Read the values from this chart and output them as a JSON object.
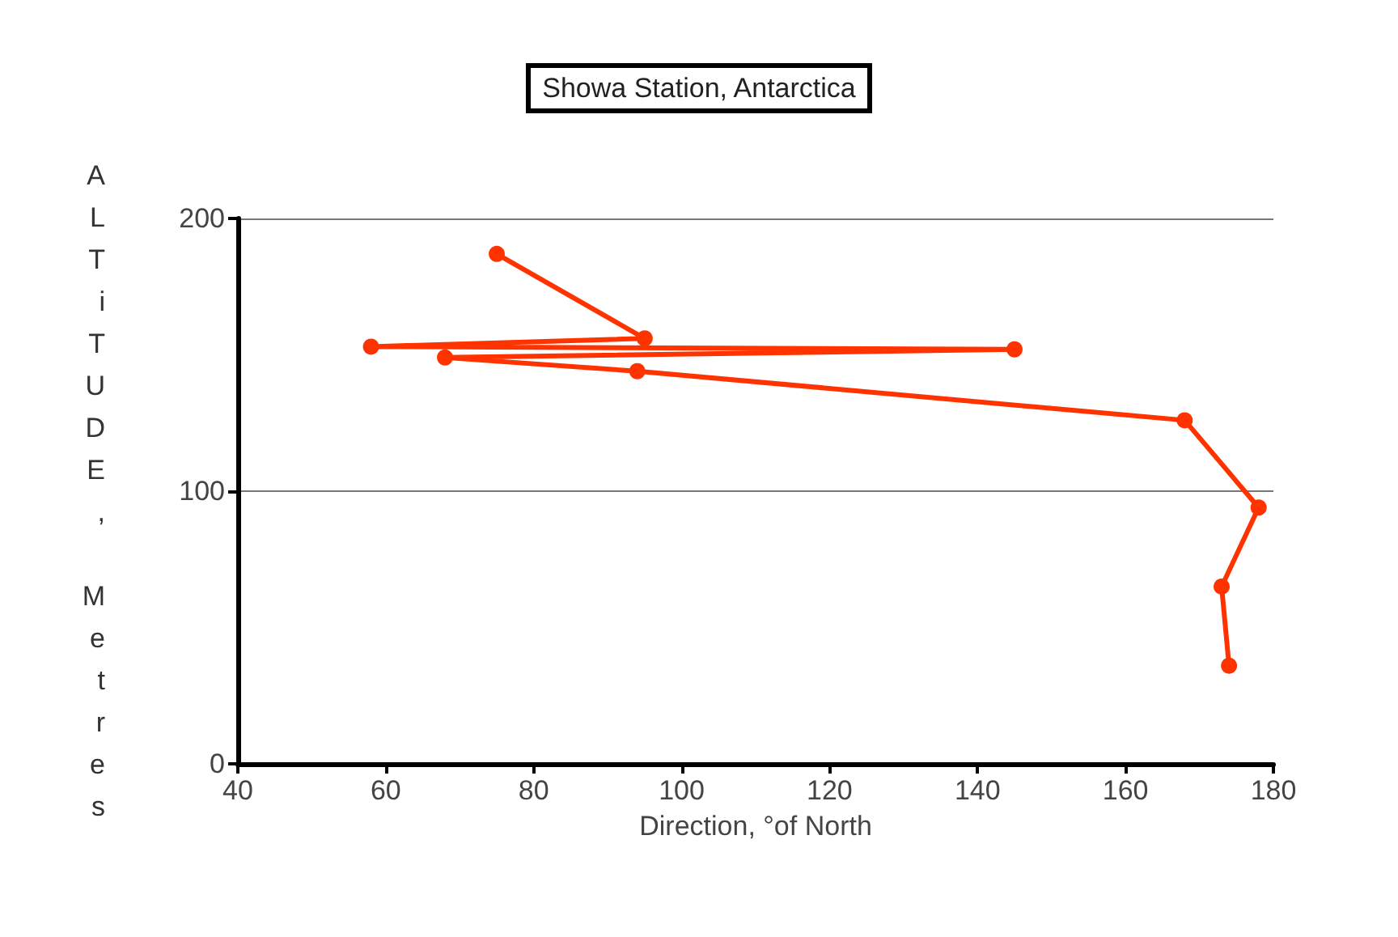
{
  "chart_data": {
    "type": "line",
    "title": "Showa Station, Antarctica",
    "xlabel": "Direction, °of North",
    "ylabel": "ALTiTUDE, Metres",
    "series": [
      {
        "color": "#ff3300",
        "x": [
          174,
          173,
          178,
          168,
          94,
          68,
          145,
          58,
          95,
          75
        ],
        "values": [
          36,
          65,
          94,
          126,
          144,
          149,
          152,
          153,
          156,
          187
        ]
      }
    ],
    "xlim": [
      40,
      180
    ],
    "xticks": [
      40,
      60,
      80,
      100,
      120,
      140,
      160,
      180
    ],
    "ylim": [
      0,
      200
    ],
    "yticks": [
      0,
      100,
      200
    ],
    "grid": "y",
    "marker": "circle",
    "line_style": "solid"
  }
}
